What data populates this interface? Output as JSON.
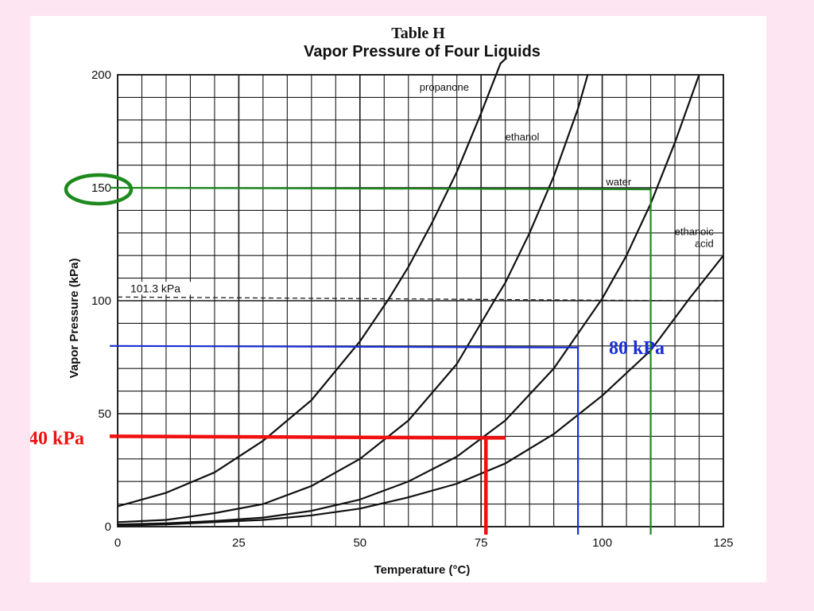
{
  "colors": {
    "background": "#fde6f2",
    "grid": "#1a1a1a",
    "curve": "#111111",
    "green": "#1e8a1e",
    "blue": "#1a2fd6",
    "red": "#f01010"
  },
  "chart_data": {
    "type": "line",
    "title": "Table H",
    "subtitle": "Vapor Pressure of Four Liquids",
    "xlabel": "Temperature (°C)",
    "ylabel": "Vapor Pressure (kPa)",
    "xlim": [
      0,
      125
    ],
    "ylim": [
      0,
      200
    ],
    "xticks": [
      0,
      25,
      50,
      75,
      100,
      125
    ],
    "yticks": [
      0,
      50,
      100,
      150,
      200
    ],
    "grid": true,
    "series": [
      {
        "name": "propanone",
        "x": [
          0,
          10,
          20,
          30,
          40,
          50,
          56,
          60,
          65,
          70,
          75,
          79,
          80
        ],
        "y": [
          9,
          15,
          24,
          38,
          56,
          82,
          101,
          115,
          135,
          157,
          183,
          205,
          210
        ]
      },
      {
        "name": "ethanol",
        "x": [
          0,
          10,
          20,
          30,
          40,
          50,
          60,
          70,
          78,
          80,
          85,
          90,
          95,
          97
        ],
        "y": [
          2,
          3,
          6,
          10,
          18,
          30,
          47,
          72,
          101,
          108,
          130,
          155,
          185,
          200
        ]
      },
      {
        "name": "water",
        "x": [
          0,
          10,
          20,
          30,
          40,
          50,
          60,
          70,
          80,
          90,
          100,
          105,
          110,
          115,
          120
        ],
        "y": [
          1,
          1.5,
          2.5,
          4,
          7,
          12,
          20,
          31,
          47,
          70,
          101,
          120,
          143,
          170,
          200
        ]
      },
      {
        "name": "ethanoic acid",
        "x": [
          0,
          10,
          20,
          30,
          40,
          50,
          60,
          70,
          80,
          90,
          100,
          110,
          118,
          125
        ],
        "y": [
          0.5,
          1,
          2,
          3,
          5,
          8,
          13,
          19,
          28,
          41,
          58,
          78,
          101,
          120
        ]
      }
    ],
    "reference_line": {
      "label": "101.3 kPa",
      "y": 101.3
    },
    "annotations": [
      {
        "label": "",
        "pressure": 150,
        "temperature": 110,
        "color": "green"
      },
      {
        "label": "80 kPa",
        "pressure": 80,
        "temperature": 95,
        "color": "blue"
      },
      {
        "label": "40 kPa",
        "pressure": 40,
        "temperature": 76,
        "color": "red"
      }
    ]
  }
}
